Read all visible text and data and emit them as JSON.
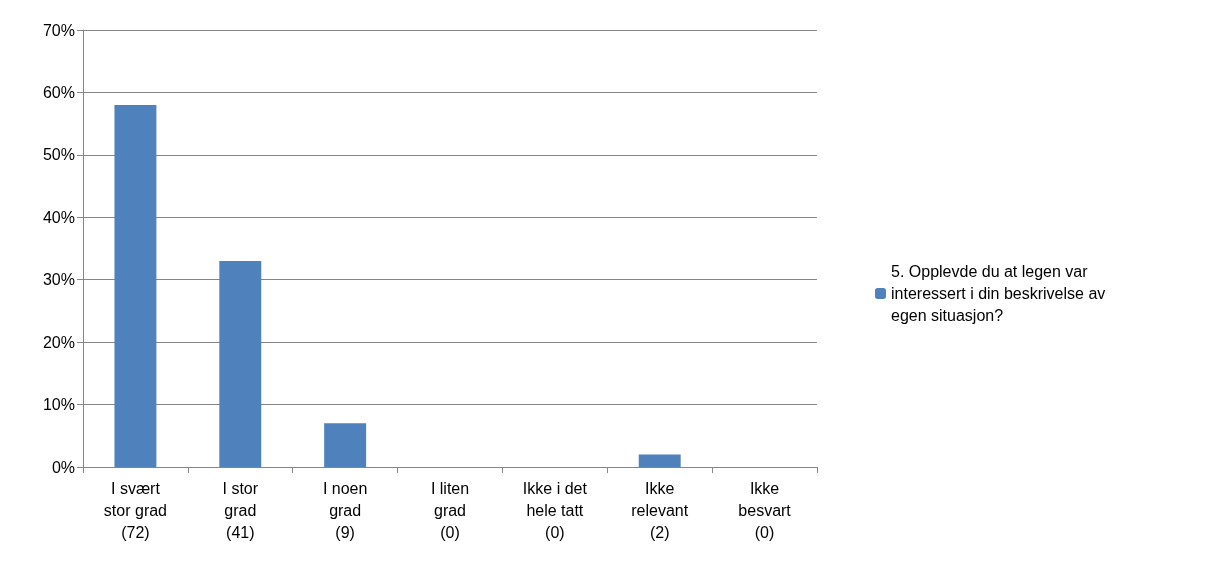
{
  "chart_data": {
    "type": "bar",
    "categories": [
      "I svært\nstor grad\n(72)",
      "I stor\ngrad\n(41)",
      "I noen\ngrad\n(9)",
      "I liten\ngrad\n(0)",
      "Ikke i det\nhele tatt\n(0)",
      "Ikke\nrelevant\n(2)",
      "Ikke\nbesvart\n(0)"
    ],
    "series": [
      {
        "name": "5. Opplevde du at legen var\ninteressert i din beskrivelse av\negen situasjon?",
        "color": "#4f81bd",
        "values": [
          58,
          33,
          7,
          0,
          0,
          2,
          0
        ]
      }
    ],
    "ylim": [
      0,
      70
    ],
    "yticks": [
      {
        "value": 0,
        "label": "0%"
      },
      {
        "value": 10,
        "label": "10%"
      },
      {
        "value": 20,
        "label": "20%"
      },
      {
        "value": 30,
        "label": "30%"
      },
      {
        "value": 40,
        "label": "40%"
      },
      {
        "value": 50,
        "label": "50%"
      },
      {
        "value": 60,
        "label": "60%"
      },
      {
        "value": 70,
        "label": "70%"
      }
    ],
    "grid": "y",
    "legend": "right"
  }
}
